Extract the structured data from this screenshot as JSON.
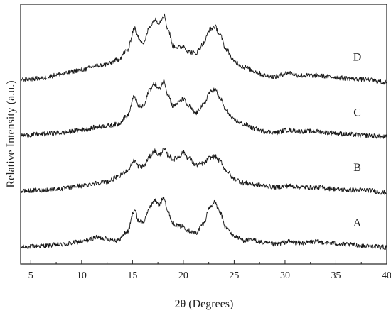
{
  "chart_data": {
    "type": "line",
    "title": "",
    "xlabel": "2θ (Degrees)",
    "ylabel": "Relative Intensity (a.u.)",
    "xlim": [
      4,
      40
    ],
    "x_ticks": [
      5,
      10,
      15,
      20,
      25,
      30,
      35,
      40
    ],
    "y_tick_labels": false,
    "grid": false,
    "legend": "none",
    "line_color": "#1a1a1a",
    "series": [
      {
        "name": "A",
        "baseline": 0.0,
        "points": [
          [
            4,
            0.0
          ],
          [
            6,
            0.1
          ],
          [
            8,
            0.2
          ],
          [
            10,
            0.4
          ],
          [
            11.5,
            0.7
          ],
          [
            12.5,
            0.6
          ],
          [
            13.5,
            0.5
          ],
          [
            14.5,
            1.1
          ],
          [
            15.2,
            2.7
          ],
          [
            15.6,
            1.9
          ],
          [
            16.1,
            1.8
          ],
          [
            16.7,
            2.9
          ],
          [
            17.2,
            3.4
          ],
          [
            17.6,
            3.0
          ],
          [
            18.1,
            3.6
          ],
          [
            18.5,
            2.5
          ],
          [
            19.0,
            1.7
          ],
          [
            19.6,
            1.5
          ],
          [
            20.0,
            1.5
          ],
          [
            20.5,
            1.2
          ],
          [
            21.2,
            1.0
          ],
          [
            22.0,
            1.7
          ],
          [
            22.6,
            2.9
          ],
          [
            23.1,
            3.2
          ],
          [
            23.6,
            2.5
          ],
          [
            24.2,
            1.4
          ],
          [
            25.0,
            0.8
          ],
          [
            26.0,
            0.5
          ],
          [
            27.0,
            0.5
          ],
          [
            28.0,
            0.3
          ],
          [
            29.0,
            0.2
          ],
          [
            30.3,
            0.4
          ],
          [
            31.5,
            0.3
          ],
          [
            33.0,
            0.4
          ],
          [
            34.5,
            0.3
          ],
          [
            36.0,
            0.2
          ],
          [
            38.0,
            0.1
          ],
          [
            40.0,
            0.0
          ]
        ]
      },
      {
        "name": "B",
        "baseline": 4.0,
        "points": [
          [
            4,
            4.0
          ],
          [
            6,
            4.1
          ],
          [
            8,
            4.2
          ],
          [
            10,
            4.4
          ],
          [
            11.5,
            4.6
          ],
          [
            12.5,
            4.7
          ],
          [
            13.5,
            5.0
          ],
          [
            14.5,
            5.5
          ],
          [
            15.2,
            6.2
          ],
          [
            15.6,
            5.8
          ],
          [
            16.1,
            5.8
          ],
          [
            16.7,
            6.5
          ],
          [
            17.2,
            6.9
          ],
          [
            17.6,
            6.6
          ],
          [
            18.1,
            7.0
          ],
          [
            18.5,
            6.6
          ],
          [
            19.0,
            6.3
          ],
          [
            19.6,
            6.5
          ],
          [
            20.0,
            6.8
          ],
          [
            20.5,
            6.4
          ],
          [
            21.2,
            5.9
          ],
          [
            22.0,
            6.0
          ],
          [
            22.6,
            6.4
          ],
          [
            23.1,
            6.5
          ],
          [
            23.6,
            6.2
          ],
          [
            24.2,
            5.5
          ],
          [
            25.0,
            4.9
          ],
          [
            26.0,
            4.6
          ],
          [
            27.0,
            4.5
          ],
          [
            28.0,
            4.4
          ],
          [
            29.0,
            4.3
          ],
          [
            30.3,
            4.4
          ],
          [
            31.5,
            4.3
          ],
          [
            33.0,
            4.3
          ],
          [
            34.5,
            4.2
          ],
          [
            36.0,
            4.1
          ],
          [
            38.0,
            4.1
          ],
          [
            40.0,
            3.9
          ]
        ]
      },
      {
        "name": "C",
        "baseline": 8.0,
        "points": [
          [
            4,
            8.0
          ],
          [
            6,
            8.1
          ],
          [
            8,
            8.2
          ],
          [
            10,
            8.4
          ],
          [
            11.5,
            8.6
          ],
          [
            12.5,
            8.7
          ],
          [
            13.5,
            8.8
          ],
          [
            14.5,
            9.4
          ],
          [
            15.2,
            10.8
          ],
          [
            15.6,
            10.1
          ],
          [
            16.1,
            10.1
          ],
          [
            16.7,
            11.3
          ],
          [
            17.2,
            11.7
          ],
          [
            17.6,
            11.3
          ],
          [
            18.1,
            11.9
          ],
          [
            18.5,
            10.9
          ],
          [
            19.0,
            10.1
          ],
          [
            19.6,
            10.4
          ],
          [
            20.0,
            10.6
          ],
          [
            20.5,
            10.1
          ],
          [
            21.2,
            9.6
          ],
          [
            22.0,
            10.2
          ],
          [
            22.6,
            11.1
          ],
          [
            23.1,
            11.3
          ],
          [
            23.6,
            10.7
          ],
          [
            24.2,
            9.8
          ],
          [
            25.0,
            9.1
          ],
          [
            26.0,
            8.8
          ],
          [
            27.0,
            8.5
          ],
          [
            28.0,
            8.3
          ],
          [
            29.0,
            8.2
          ],
          [
            30.3,
            8.4
          ],
          [
            31.5,
            8.3
          ],
          [
            33.0,
            8.3
          ],
          [
            34.5,
            8.2
          ],
          [
            36.0,
            8.1
          ],
          [
            38.0,
            8.0
          ],
          [
            40.0,
            7.9
          ]
        ]
      },
      {
        "name": "D",
        "baseline": 12.0,
        "points": [
          [
            4,
            12.0
          ],
          [
            6,
            12.1
          ],
          [
            8,
            12.4
          ],
          [
            10,
            12.7
          ],
          [
            11.5,
            13.0
          ],
          [
            12.5,
            13.1
          ],
          [
            13.5,
            13.4
          ],
          [
            14.5,
            14.1
          ],
          [
            15.2,
            15.7
          ],
          [
            15.6,
            15.0
          ],
          [
            16.1,
            14.6
          ],
          [
            16.7,
            15.8
          ],
          [
            17.2,
            16.3
          ],
          [
            17.6,
            16.1
          ],
          [
            18.1,
            16.6
          ],
          [
            18.5,
            15.6
          ],
          [
            19.0,
            14.4
          ],
          [
            19.6,
            14.3
          ],
          [
            20.0,
            14.4
          ],
          [
            20.5,
            14.0
          ],
          [
            21.2,
            13.9
          ],
          [
            22.0,
            14.6
          ],
          [
            22.6,
            15.6
          ],
          [
            23.1,
            15.8
          ],
          [
            23.6,
            15.2
          ],
          [
            24.2,
            14.2
          ],
          [
            25.0,
            13.3
          ],
          [
            26.0,
            12.9
          ],
          [
            27.0,
            12.6
          ],
          [
            28.0,
            12.3
          ],
          [
            29.0,
            12.2
          ],
          [
            30.3,
            12.5
          ],
          [
            31.5,
            12.3
          ],
          [
            33.0,
            12.3
          ],
          [
            34.5,
            12.2
          ],
          [
            36.0,
            12.1
          ],
          [
            38.0,
            12.0
          ],
          [
            40.0,
            11.8
          ]
        ]
      }
    ]
  }
}
